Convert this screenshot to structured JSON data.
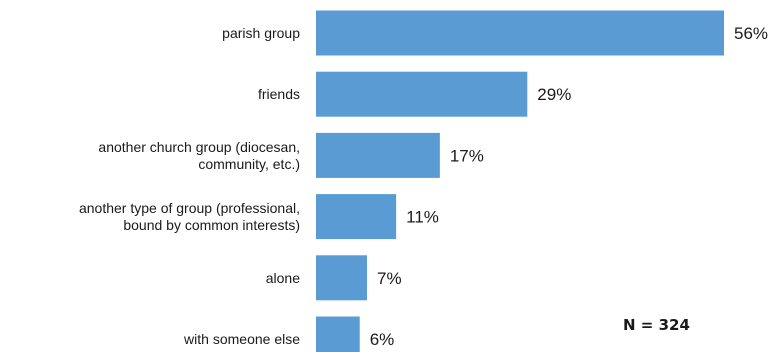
{
  "chart_data": {
    "type": "bar",
    "orientation": "horizontal",
    "categories": [
      [
        "parish group"
      ],
      [
        "friends"
      ],
      [
        "another church group (diocesan,",
        "community, etc.)"
      ],
      [
        "another type of group (professional,",
        "bound by common interests)"
      ],
      [
        "alone"
      ],
      [
        "with someone else"
      ]
    ],
    "values": [
      56,
      29,
      17,
      11,
      7,
      6
    ],
    "value_labels": [
      "56%",
      "29%",
      "17%",
      "11%",
      "7%",
      "6%"
    ],
    "unit": "%",
    "xlim": [
      0,
      56
    ],
    "bar_color": "#5b9bd3",
    "grid": false,
    "annotation": "N = 324"
  }
}
